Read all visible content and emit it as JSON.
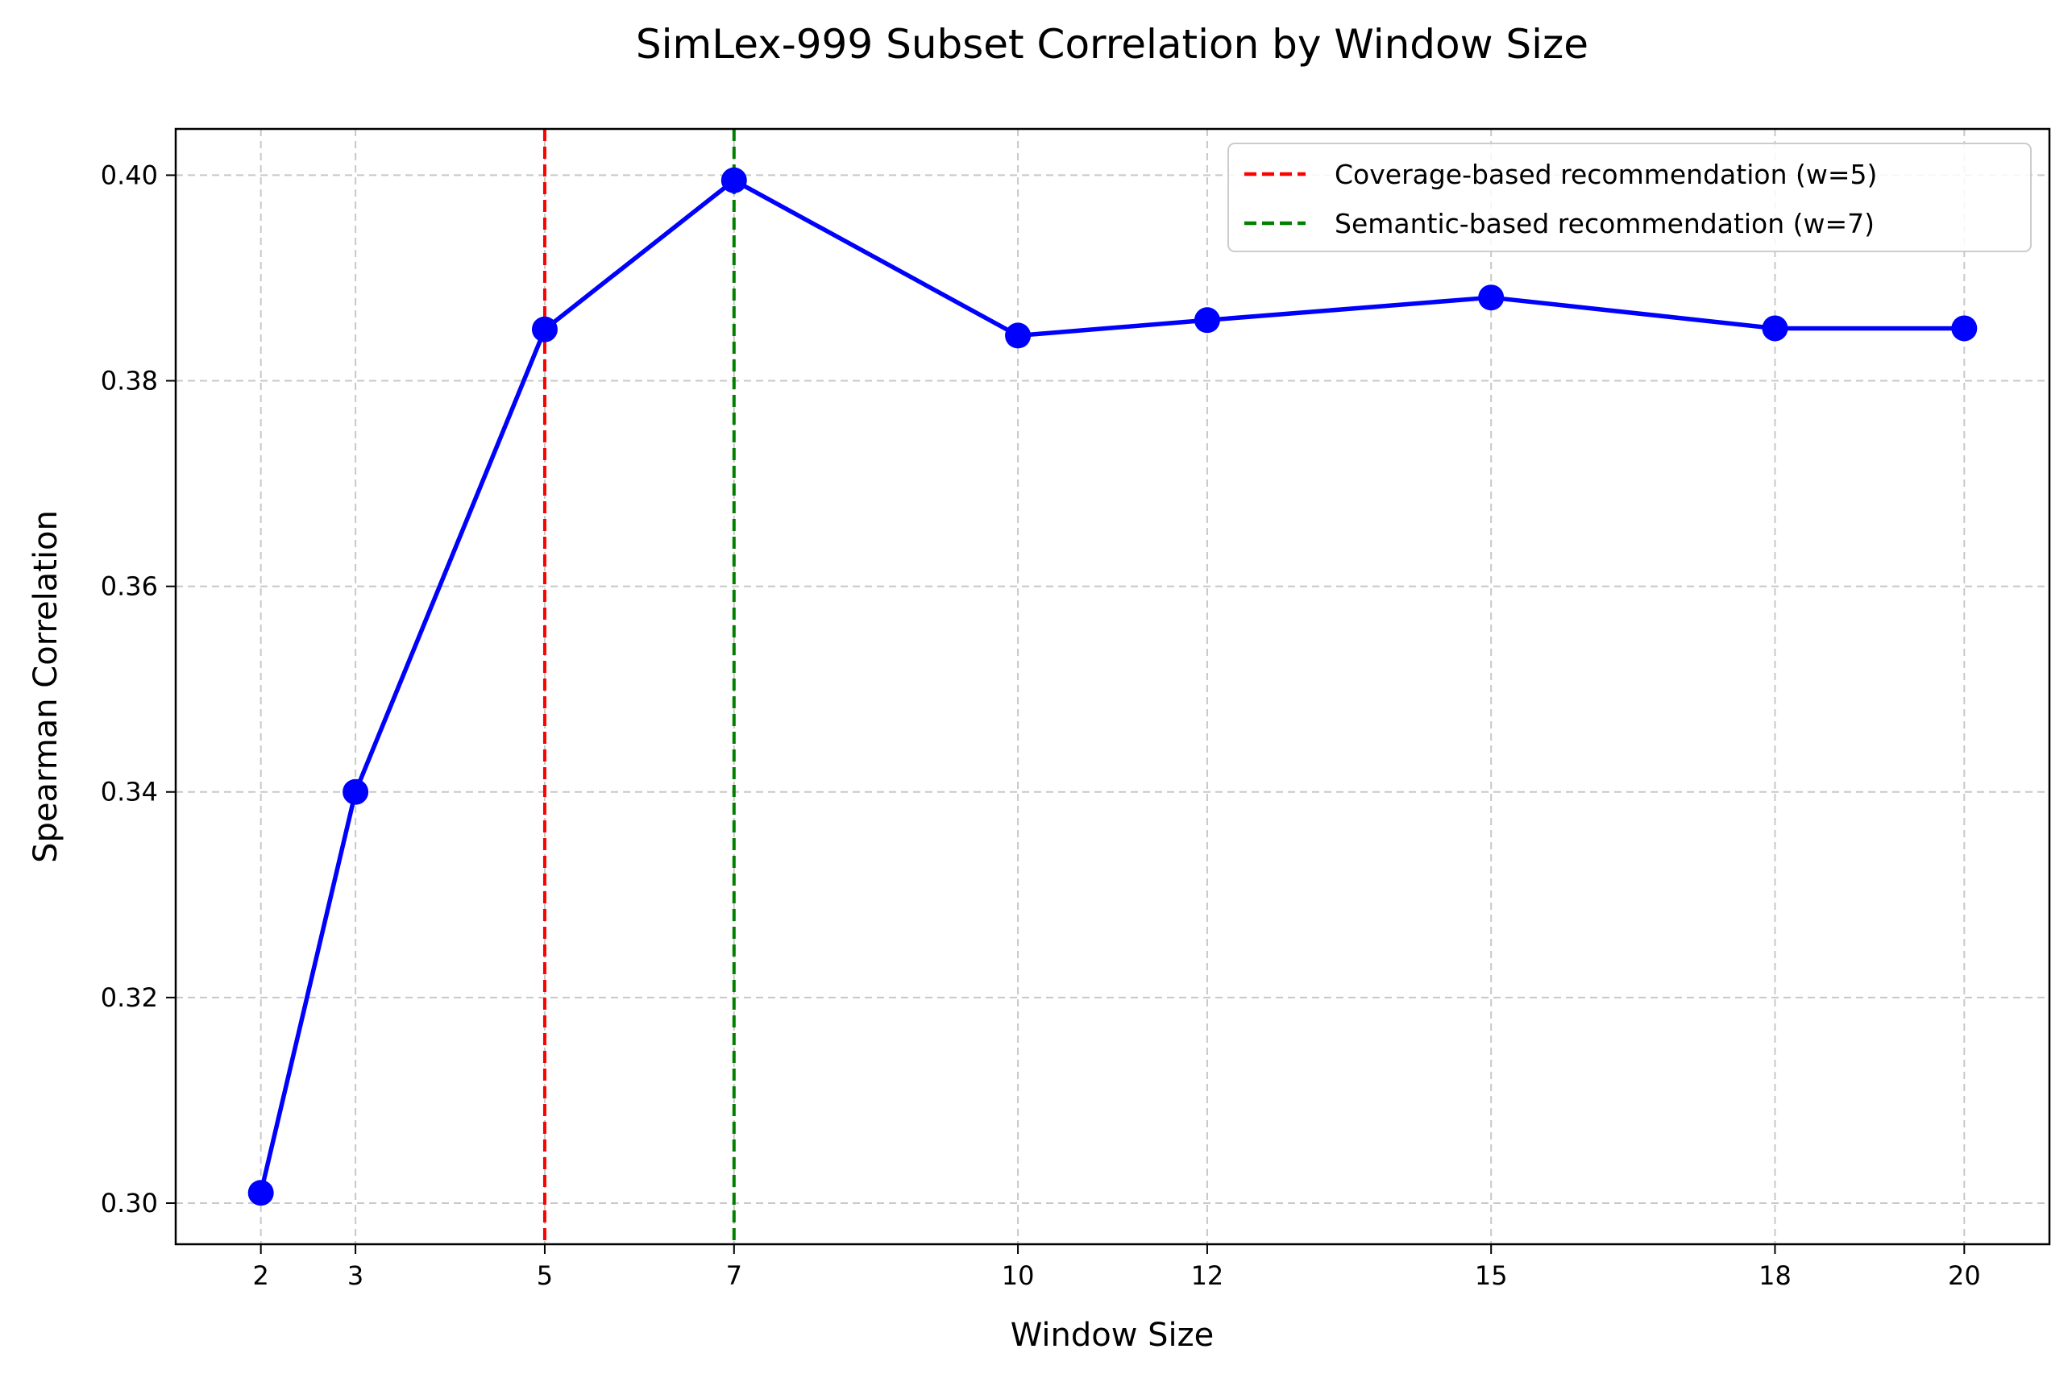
{
  "chart_data": {
    "type": "line",
    "title": "SimLex-999 Subset Correlation by Window Size",
    "xlabel": "Window Size",
    "ylabel": "Spearman Correlation",
    "xlim": [
      1.1,
      20.9
    ],
    "ylim": [
      0.296,
      0.4045
    ],
    "x_ticks": [
      2,
      3,
      5,
      7,
      10,
      12,
      15,
      18,
      20
    ],
    "y_ticks": [
      0.3,
      0.32,
      0.34,
      0.36,
      0.38,
      0.4
    ],
    "y_tick_labels": [
      "0.30",
      "0.32",
      "0.34",
      "0.36",
      "0.38",
      "0.40"
    ],
    "grid": true,
    "legend_position": "top-right",
    "series": [
      {
        "color": "#0000ff",
        "marker": "circle",
        "x": [
          2,
          3,
          5,
          7,
          10,
          12,
          15,
          18,
          20
        ],
        "y": [
          0.301,
          0.34,
          0.385,
          0.3995,
          0.3844,
          0.3859,
          0.3881,
          0.3851,
          0.3851
        ]
      }
    ],
    "reference_lines": [
      {
        "name": "Coverage-based recommendation (w=5)",
        "x": 5,
        "color": "#ff0000",
        "style": "dashed"
      },
      {
        "name": "Semantic-based recommendation (w=7)",
        "x": 7,
        "color": "#007f00",
        "style": "dashed"
      }
    ]
  }
}
